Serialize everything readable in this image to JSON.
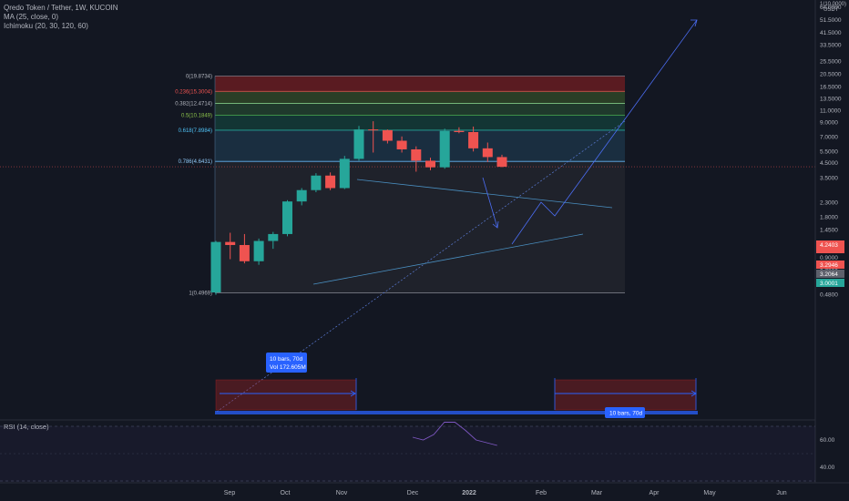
{
  "legend": {
    "title": "Qredo Token / Tether, 1W, KUCOIN",
    "ma": "MA (25, close, 0)",
    "ichimoku": "Ichimoku (20, 30, 120, 60)",
    "rsi": "RSI (14, close)"
  },
  "colors": {
    "background": "#131722",
    "bull": "#26a69a",
    "bear": "#ef5350",
    "fib_text_red": "#ef5350",
    "fib_text_green": "#8bc34a",
    "drawing_blue": "#2962ff",
    "rsi_line": "#7e57c2"
  },
  "chart_data": {
    "type": "candlestick",
    "y_scale": "log",
    "y_axis": {
      "unit_label": "USDT",
      "top_label": "1(10.0000)",
      "ticks": [
        "80.0000",
        "64.0000",
        "51.5000",
        "41.5000",
        "33.5000",
        "25.5000",
        "20.5000",
        "16.5000",
        "13.5000",
        "11.0000",
        "9.0000",
        "7.0000",
        "5.5000",
        "4.5000",
        "3.5000",
        "2.3000",
        "1.8000",
        "1.4500",
        "1.1500",
        "0.9000",
        "0.7200",
        "0.5900",
        "0.4800"
      ],
      "price_tags": [
        {
          "label": "4.2403",
          "kind": "bear"
        },
        {
          "label": "3.2946",
          "kind": "bear"
        },
        {
          "label": "3.2064",
          "kind": "neutral"
        },
        {
          "label": "3.0001",
          "kind": "bull"
        }
      ]
    },
    "x_axis": {
      "ticks": [
        "Sep",
        "Oct",
        "Nov",
        "Dec",
        "2022",
        "Feb",
        "Mar",
        "Apr",
        "May",
        "Jun"
      ]
    },
    "candles": [
      {
        "o": 0.5,
        "h": 1.2,
        "l": 0.48,
        "c": 1.18
      },
      {
        "o": 1.18,
        "h": 1.38,
        "l": 0.88,
        "c": 1.12
      },
      {
        "o": 1.12,
        "h": 1.35,
        "l": 0.82,
        "c": 0.85
      },
      {
        "o": 0.85,
        "h": 1.25,
        "l": 0.8,
        "c": 1.2
      },
      {
        "o": 1.2,
        "h": 1.4,
        "l": 1.05,
        "c": 1.35
      },
      {
        "o": 1.35,
        "h": 2.4,
        "l": 1.3,
        "c": 2.35
      },
      {
        "o": 2.35,
        "h": 2.95,
        "l": 2.2,
        "c": 2.85
      },
      {
        "o": 2.85,
        "h": 3.8,
        "l": 2.75,
        "c": 3.65
      },
      {
        "o": 3.65,
        "h": 3.85,
        "l": 2.85,
        "c": 2.95
      },
      {
        "o": 2.95,
        "h": 5.1,
        "l": 2.9,
        "c": 4.85
      },
      {
        "o": 4.85,
        "h": 8.5,
        "l": 4.7,
        "c": 8.0
      },
      {
        "o": 8.0,
        "h": 9.2,
        "l": 5.4,
        "c": 7.9
      },
      {
        "o": 7.9,
        "h": 8.0,
        "l": 6.3,
        "c": 6.6
      },
      {
        "o": 6.6,
        "h": 7.1,
        "l": 5.4,
        "c": 5.7
      },
      {
        "o": 5.7,
        "h": 6.0,
        "l": 3.9,
        "c": 4.7
      },
      {
        "o": 4.7,
        "h": 4.95,
        "l": 4.0,
        "c": 4.2
      },
      {
        "o": 4.2,
        "h": 8.1,
        "l": 4.1,
        "c": 7.8
      },
      {
        "o": 7.8,
        "h": 8.3,
        "l": 7.5,
        "c": 7.65
      },
      {
        "o": 7.65,
        "h": 8.4,
        "l": 5.5,
        "c": 5.8
      },
      {
        "o": 5.8,
        "h": 6.4,
        "l": 4.6,
        "c": 5.0
      },
      {
        "o": 5.0,
        "h": 5.2,
        "l": 4.2,
        "c": 4.24
      }
    ],
    "fib_levels": [
      {
        "label": "0(19.8734)",
        "price": 19.8734,
        "text_color": "#b2b5be",
        "zone": "rgba(178,34,34,0.45)"
      },
      {
        "label": "0.236(15.3004)",
        "price": 15.3004,
        "text_color": "#ef5350",
        "zone": "rgba(70,110,45,0.45)"
      },
      {
        "label": "0.382(12.4714)",
        "price": 12.4714,
        "text_color": "#b2b5be",
        "zone": "rgba(50,110,60,0.40)"
      },
      {
        "label": "0.5(10.1849)",
        "price": 10.1849,
        "text_color": "#8bc34a",
        "zone": "rgba(20,90,75,0.45)"
      },
      {
        "label": "0.618(7.8984)",
        "price": 7.8984,
        "text_color": "#4fc3f7",
        "zone": "rgba(40,90,120,0.35)"
      },
      {
        "label": "0.786(4.6431)",
        "price": 4.6431,
        "text_color": "#90caf9",
        "zone": "rgba(90,90,90,0.18)"
      },
      {
        "label": "1(0.4969)",
        "price": 0.4969,
        "text_color": "#b2b5be",
        "zone": ""
      }
    ],
    "annotations": {
      "measure_left": {
        "line1": "10 bars, 70d",
        "line2": "Vol 172.605M"
      },
      "measure_right": {
        "line1": "10 bars, 70d"
      }
    },
    "rsi": {
      "ticks": [
        "60.00",
        "40.00"
      ],
      "values": [
        62,
        60,
        64,
        73,
        73,
        67,
        60,
        58,
        56
      ]
    }
  }
}
